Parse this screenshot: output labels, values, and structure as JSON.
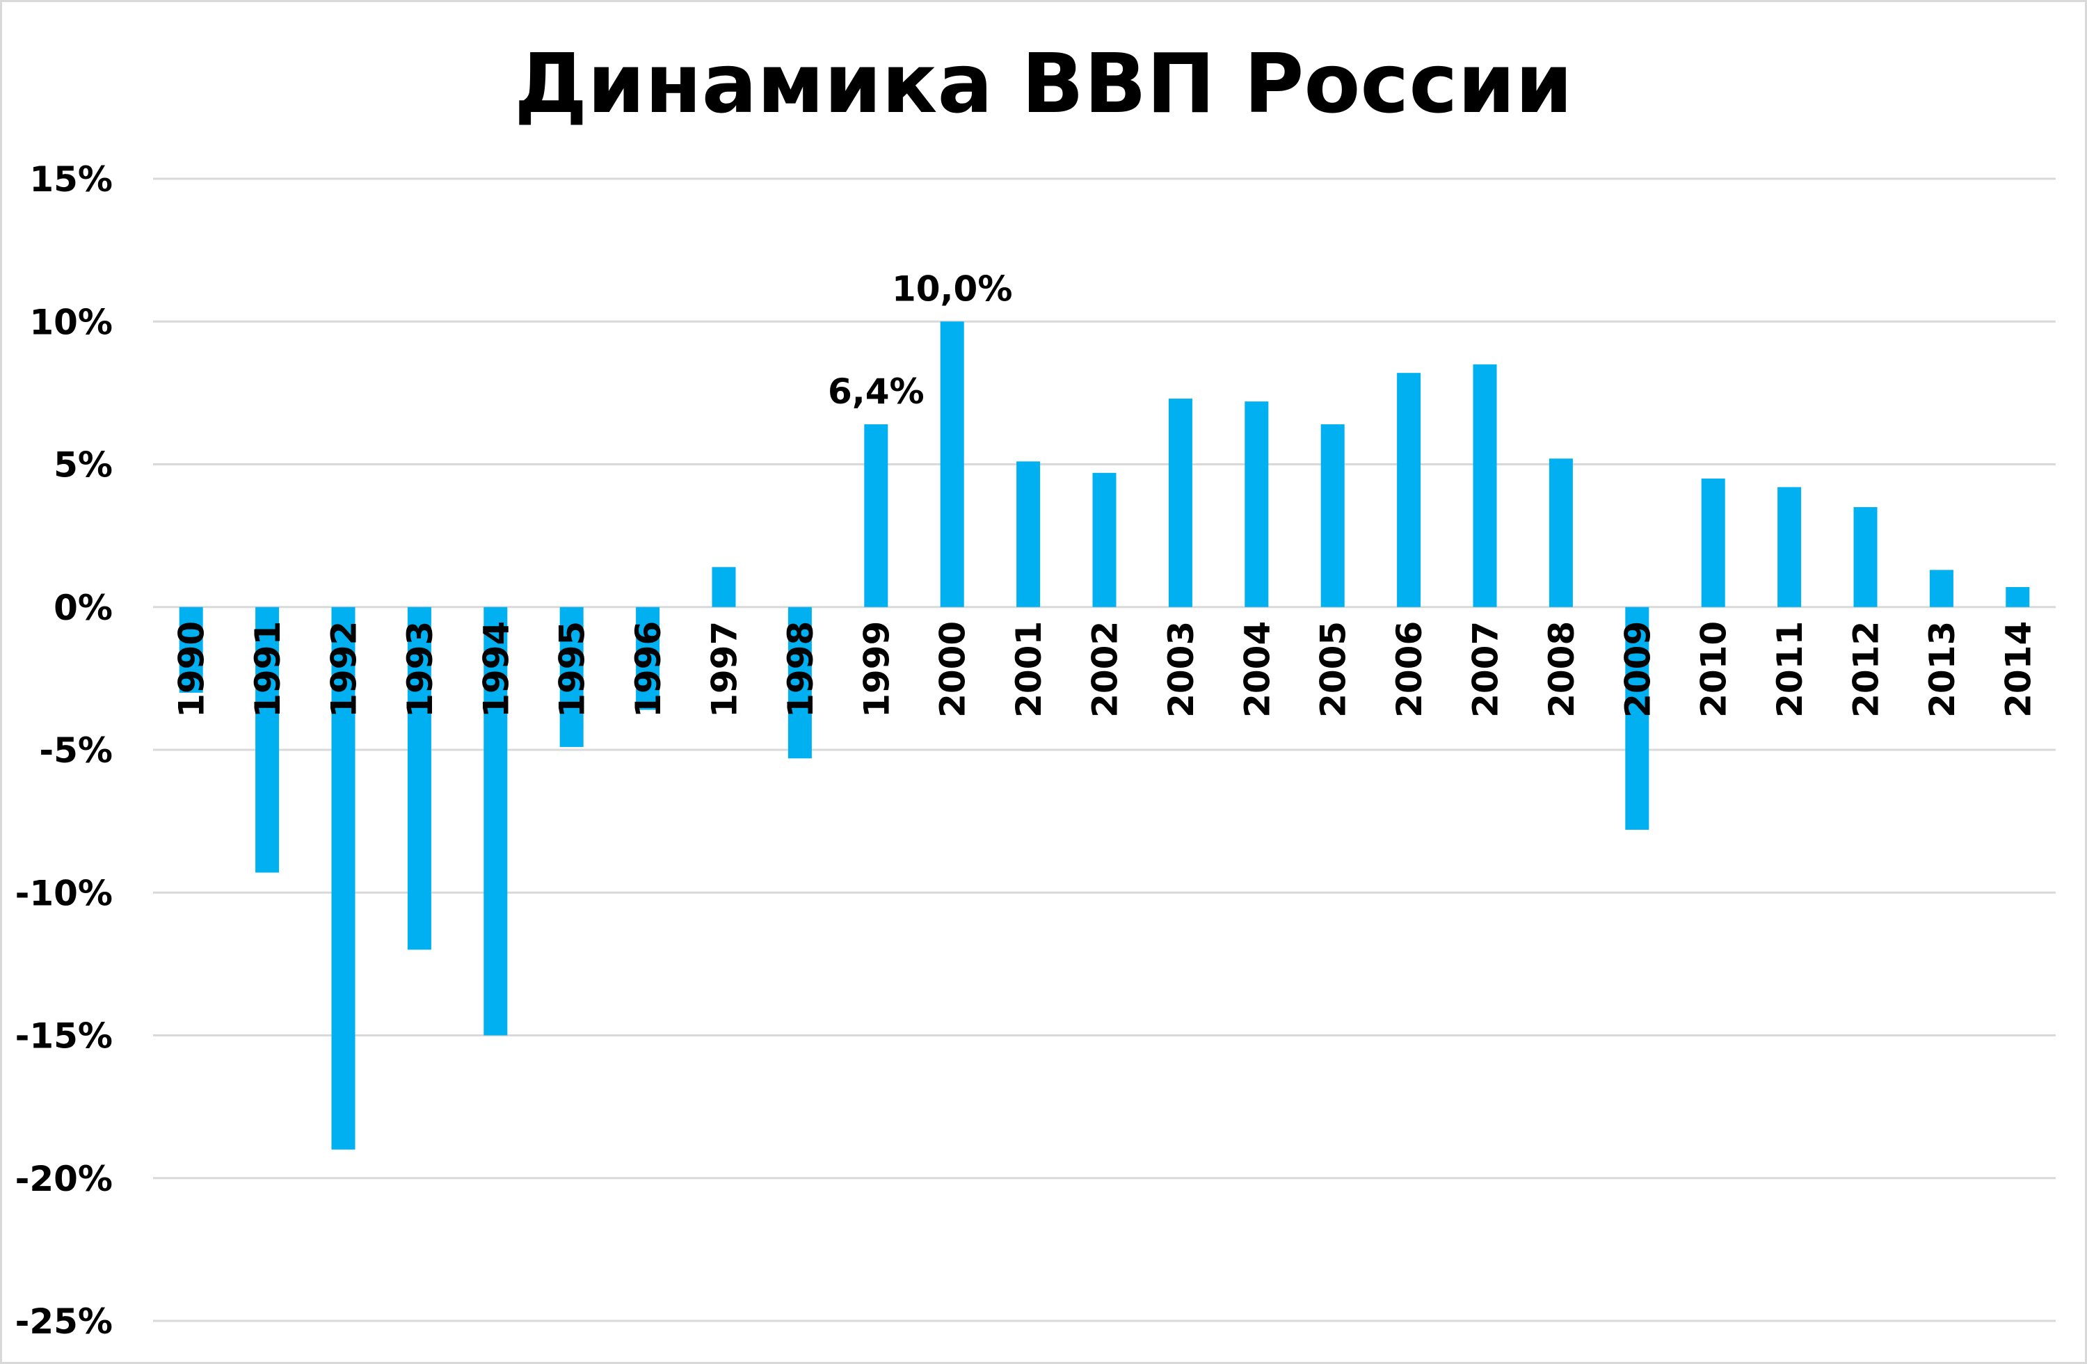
{
  "chart_data": {
    "type": "bar",
    "title": "Динамика ВВП России",
    "xlabel": "",
    "ylabel": "",
    "ylim": [
      -25,
      15
    ],
    "yticks": [
      15,
      10,
      5,
      0,
      -5,
      -10,
      -15,
      -20,
      -25
    ],
    "ytick_labels": [
      "15%",
      "10%",
      "5%",
      "0%",
      "-5%",
      "-10%",
      "-15%",
      "-20%",
      "-25%"
    ],
    "grid": true,
    "legend": "none",
    "bar_color": "#00b0f0",
    "gridline_color": "#d9d9d9",
    "categories": [
      "1990",
      "1991",
      "1992",
      "1993",
      "1994",
      "1995",
      "1996",
      "1997",
      "1998",
      "1999",
      "2000",
      "2001",
      "2002",
      "2003",
      "2004",
      "2005",
      "2006",
      "2007",
      "2008",
      "2009",
      "2010",
      "2011",
      "2012",
      "2013",
      "2014"
    ],
    "values": [
      -3.0,
      -9.3,
      -19.0,
      -12.0,
      -15.0,
      -4.9,
      -3.6,
      1.4,
      -5.3,
      6.4,
      10.0,
      5.1,
      4.7,
      7.3,
      7.2,
      6.4,
      8.2,
      8.5,
      5.2,
      -7.8,
      4.5,
      4.2,
      3.5,
      1.3,
      0.7
    ],
    "data_labels": [
      {
        "category": "1999",
        "text": "6,4%"
      },
      {
        "category": "2000",
        "text": "10,0%"
      }
    ]
  }
}
